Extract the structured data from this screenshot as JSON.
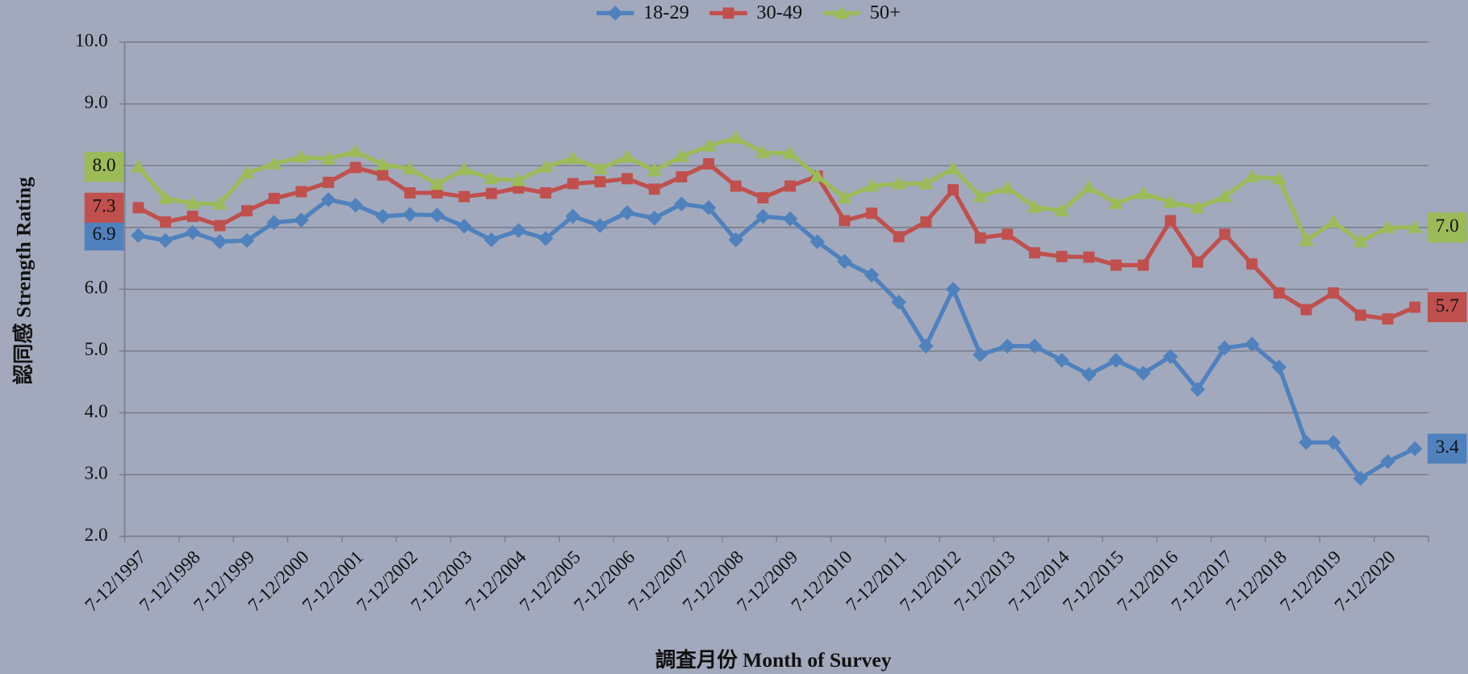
{
  "chart_data": {
    "type": "line",
    "y_label": "認同感 Strength Rating",
    "x_label": "調査月份 Month of Survey",
    "categories": [
      "7-12/1997",
      null,
      "7-12/1998",
      null,
      "7-12/1999",
      null,
      "7-12/2000",
      null,
      "7-12/2001",
      null,
      "7-12/2002",
      null,
      "7-12/2003",
      null,
      "7-12/2004",
      null,
      "7-12/2005",
      null,
      "7-12/2006",
      null,
      "7-12/2007",
      null,
      "7-12/2008",
      null,
      "7-12/2009",
      null,
      "7-12/2010",
      null,
      "7-12/2011",
      null,
      "7-12/2012",
      null,
      "7-12/2013",
      null,
      "7-12/2014",
      null,
      "7-12/2015",
      null,
      "7-12/2016",
      null,
      "7-12/2017",
      null,
      "7-12/2018",
      null,
      "7-12/2019",
      null,
      "7-12/2020",
      null
    ],
    "ylim": [
      2,
      10
    ],
    "yticks": [
      {
        "value": 2,
        "label": "2.0"
      },
      {
        "value": 3,
        "label": "3.0"
      },
      {
        "value": 4,
        "label": "4.0"
      },
      {
        "value": 5,
        "label": "5.0"
      },
      {
        "value": 6,
        "label": "6.0"
      },
      {
        "value": 7,
        "label": "7.0"
      },
      {
        "value": 8,
        "label": "8.0"
      },
      {
        "value": 9,
        "label": "9.0"
      },
      {
        "value": 10,
        "label": "10.0"
      }
    ],
    "grid": true,
    "legend": "top",
    "series": [
      {
        "name": "18-29",
        "color": "#4f81bd",
        "marker": "diamond",
        "values": [
          6.87,
          6.79,
          6.92,
          6.77,
          6.79,
          7.08,
          7.12,
          7.45,
          7.36,
          7.18,
          7.21,
          7.2,
          7.02,
          6.8,
          6.95,
          6.82,
          7.18,
          7.03,
          7.24,
          7.15,
          7.38,
          7.32,
          6.8,
          7.18,
          7.14,
          6.77,
          6.45,
          6.23,
          5.79,
          5.08,
          6.0,
          4.94,
          5.08,
          5.08,
          4.85,
          4.62,
          4.85,
          4.64,
          4.91,
          4.38,
          5.05,
          5.11,
          4.74,
          3.52,
          3.52,
          2.94,
          3.21,
          3.42
        ],
        "value_labels": [
          "6.9",
          null,
          null,
          null,
          null,
          null,
          null,
          null,
          null,
          null,
          null,
          null,
          null,
          null,
          null,
          null,
          null,
          null,
          null,
          null,
          null,
          null,
          null,
          null,
          null,
          null,
          null,
          null,
          null,
          null,
          null,
          null,
          null,
          null,
          null,
          null,
          null,
          null,
          null,
          null,
          null,
          null,
          null,
          null,
          null,
          null,
          null,
          "3.4"
        ]
      },
      {
        "name": "30-49",
        "color": "#c0504d",
        "marker": "square",
        "values": [
          7.32,
          7.09,
          7.18,
          7.03,
          7.27,
          7.47,
          7.58,
          7.73,
          7.97,
          7.85,
          7.56,
          7.56,
          7.5,
          7.55,
          7.64,
          7.56,
          7.71,
          7.74,
          7.79,
          7.62,
          7.82,
          8.03,
          7.67,
          7.48,
          7.67,
          7.83,
          7.11,
          7.23,
          6.85,
          7.09,
          7.61,
          6.83,
          6.89,
          6.59,
          6.53,
          6.52,
          6.39,
          6.39,
          7.11,
          6.44,
          6.89,
          6.41,
          5.94,
          5.67,
          5.94,
          5.58,
          5.52,
          5.71
        ],
        "value_labels": [
          "7.3",
          null,
          null,
          null,
          null,
          null,
          null,
          null,
          null,
          null,
          null,
          null,
          null,
          null,
          null,
          null,
          null,
          null,
          null,
          null,
          null,
          null,
          null,
          null,
          null,
          null,
          null,
          null,
          null,
          null,
          null,
          null,
          null,
          null,
          null,
          null,
          null,
          null,
          null,
          null,
          null,
          null,
          null,
          null,
          null,
          null,
          null,
          "5.7"
        ]
      },
      {
        "name": "50+",
        "color": "#9bbb59",
        "marker": "triangle",
        "values": [
          7.98,
          7.47,
          7.39,
          7.38,
          7.88,
          8.03,
          8.14,
          8.11,
          8.23,
          8.02,
          7.95,
          7.7,
          7.94,
          7.79,
          7.76,
          7.98,
          8.12,
          7.95,
          8.14,
          7.92,
          8.15,
          8.32,
          8.45,
          8.21,
          8.2,
          7.83,
          7.48,
          7.67,
          7.71,
          7.71,
          7.95,
          7.5,
          7.64,
          7.33,
          7.27,
          7.65,
          7.39,
          7.55,
          7.41,
          7.32,
          7.5,
          7.82,
          7.79,
          6.79,
          7.09,
          6.77,
          7.0,
          7.0
        ],
        "value_labels": [
          "8.0",
          null,
          null,
          null,
          null,
          null,
          null,
          null,
          null,
          null,
          null,
          null,
          null,
          null,
          null,
          null,
          null,
          null,
          null,
          null,
          null,
          null,
          null,
          null,
          null,
          null,
          null,
          null,
          null,
          null,
          null,
          null,
          null,
          null,
          null,
          null,
          null,
          null,
          null,
          null,
          null,
          null,
          null,
          null,
          null,
          null,
          null,
          "7.0"
        ]
      }
    ]
  }
}
